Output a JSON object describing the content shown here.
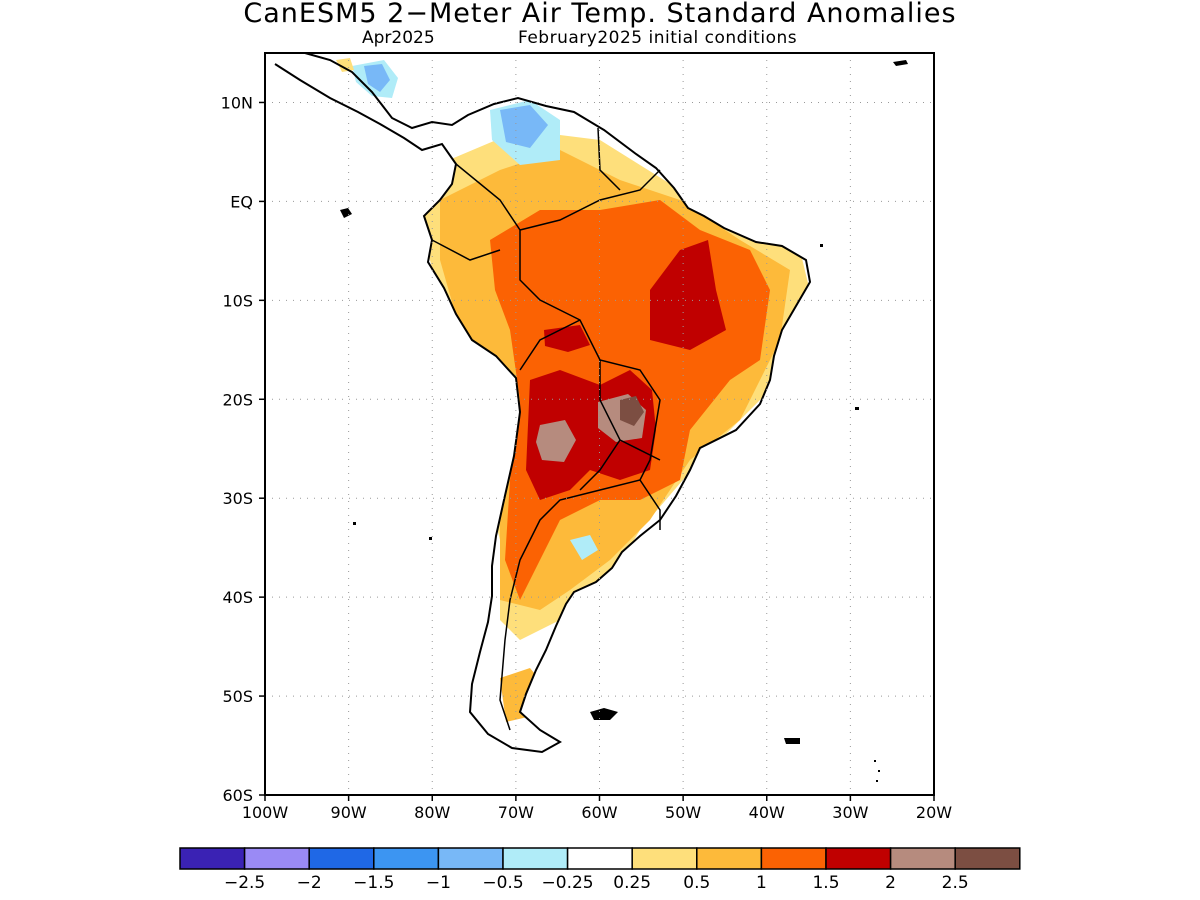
{
  "title": "CanESM5 2−Meter Air Temp. Standard Anomalies",
  "subtitle_left": "Apr2025",
  "subtitle_right": "February2025 initial conditions",
  "map": {
    "lon_range": [
      -100,
      -20
    ],
    "lat_range": [
      -60,
      15
    ],
    "lon_ticks": [
      {
        "value": -100,
        "label": "100W"
      },
      {
        "value": -90,
        "label": "90W"
      },
      {
        "value": -80,
        "label": "80W"
      },
      {
        "value": -70,
        "label": "70W"
      },
      {
        "value": -60,
        "label": "60W"
      },
      {
        "value": -50,
        "label": "50W"
      },
      {
        "value": -40,
        "label": "40W"
      },
      {
        "value": -30,
        "label": "30W"
      },
      {
        "value": -20,
        "label": "20W"
      }
    ],
    "lat_ticks": [
      {
        "value": 10,
        "label": "10N"
      },
      {
        "value": 0,
        "label": "EQ"
      },
      {
        "value": -10,
        "label": "10S"
      },
      {
        "value": -20,
        "label": "20S"
      },
      {
        "value": -30,
        "label": "30S"
      },
      {
        "value": -40,
        "label": "40S"
      },
      {
        "value": -50,
        "label": "50S"
      },
      {
        "value": -60,
        "label": "60S"
      }
    ],
    "grid": "dotted"
  },
  "colors": {
    "neg_25": "#3a22b4",
    "neg_2": "#9a8af5",
    "neg_15": "#1f68e6",
    "neg_1": "#3c95f2",
    "neg_05": "#78b8f7",
    "neg_025": "#b0ecf8",
    "neutral": "#ffffff",
    "pos_025": "#fedf7b",
    "pos_05": "#fdba3a",
    "pos_1": "#fb6203",
    "pos_15": "#c00000",
    "pos_2": "#b68b7e",
    "pos_25": "#7c4e42"
  },
  "legend": {
    "bins": [
      {
        "color": "#3a22b4"
      },
      {
        "color": "#9a8af5"
      },
      {
        "color": "#1f68e6"
      },
      {
        "color": "#3c95f2"
      },
      {
        "color": "#78b8f7"
      },
      {
        "color": "#b0ecf8"
      },
      {
        "color": "#ffffff"
      },
      {
        "color": "#fedf7b"
      },
      {
        "color": "#fdba3a"
      },
      {
        "color": "#fb6203"
      },
      {
        "color": "#c00000"
      },
      {
        "color": "#b68b7e"
      },
      {
        "color": "#7c4e42"
      }
    ],
    "labels": [
      "−2.5",
      "−2",
      "−1.5",
      "−1",
      "−0.5",
      "−0.25",
      "0.25",
      "0.5",
      "1",
      "1.5",
      "2",
      "2.5"
    ]
  }
}
